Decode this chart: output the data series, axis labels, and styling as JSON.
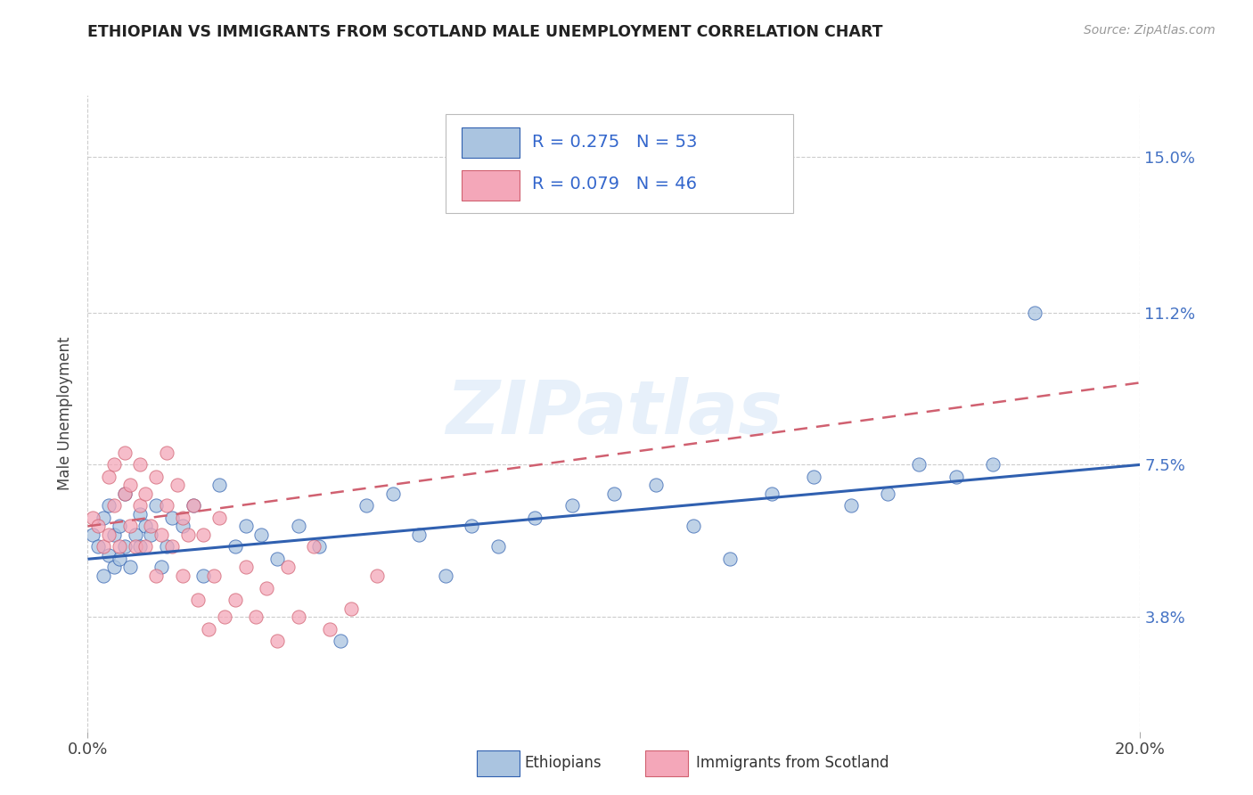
{
  "title": "ETHIOPIAN VS IMMIGRANTS FROM SCOTLAND MALE UNEMPLOYMENT CORRELATION CHART",
  "source": "Source: ZipAtlas.com",
  "ylabel": "Male Unemployment",
  "xlim": [
    0.0,
    0.2
  ],
  "ylim": [
    0.01,
    0.165
  ],
  "yticks": [
    0.038,
    0.075,
    0.112,
    0.15
  ],
  "ytick_labels": [
    "3.8%",
    "7.5%",
    "11.2%",
    "15.0%"
  ],
  "xticks": [
    0.0,
    0.2
  ],
  "xtick_labels": [
    "0.0%",
    "20.0%"
  ],
  "r_ethiopian": 0.275,
  "n_ethiopian": 53,
  "r_scotland": 0.079,
  "n_scotland": 46,
  "color_ethiopian": "#aac4e0",
  "color_scotland": "#f4a7b9",
  "line_color_ethiopian": "#3060b0",
  "line_color_scotland": "#d06070",
  "background_color": "#ffffff",
  "grid_color": "#cccccc",
  "ethiopian_x": [
    0.001,
    0.002,
    0.003,
    0.003,
    0.004,
    0.004,
    0.005,
    0.005,
    0.006,
    0.006,
    0.007,
    0.007,
    0.008,
    0.009,
    0.01,
    0.01,
    0.011,
    0.012,
    0.013,
    0.014,
    0.015,
    0.016,
    0.018,
    0.02,
    0.022,
    0.025,
    0.028,
    0.03,
    0.033,
    0.036,
    0.04,
    0.044,
    0.048,
    0.053,
    0.058,
    0.063,
    0.068,
    0.073,
    0.078,
    0.085,
    0.092,
    0.1,
    0.108,
    0.115,
    0.122,
    0.13,
    0.138,
    0.145,
    0.152,
    0.158,
    0.165,
    0.172,
    0.18
  ],
  "ethiopian_y": [
    0.058,
    0.055,
    0.062,
    0.048,
    0.053,
    0.065,
    0.05,
    0.058,
    0.06,
    0.052,
    0.055,
    0.068,
    0.05,
    0.058,
    0.063,
    0.055,
    0.06,
    0.058,
    0.065,
    0.05,
    0.055,
    0.062,
    0.06,
    0.065,
    0.048,
    0.07,
    0.055,
    0.06,
    0.058,
    0.052,
    0.06,
    0.055,
    0.032,
    0.065,
    0.068,
    0.058,
    0.048,
    0.06,
    0.055,
    0.062,
    0.065,
    0.068,
    0.07,
    0.06,
    0.052,
    0.068,
    0.072,
    0.065,
    0.068,
    0.075,
    0.072,
    0.075,
    0.112
  ],
  "scotland_x": [
    0.001,
    0.002,
    0.003,
    0.004,
    0.004,
    0.005,
    0.005,
    0.006,
    0.007,
    0.007,
    0.008,
    0.008,
    0.009,
    0.01,
    0.01,
    0.011,
    0.011,
    0.012,
    0.013,
    0.013,
    0.014,
    0.015,
    0.015,
    0.016,
    0.017,
    0.018,
    0.018,
    0.019,
    0.02,
    0.021,
    0.022,
    0.023,
    0.024,
    0.025,
    0.026,
    0.028,
    0.03,
    0.032,
    0.034,
    0.036,
    0.038,
    0.04,
    0.043,
    0.046,
    0.05,
    0.055
  ],
  "scotland_y": [
    0.062,
    0.06,
    0.055,
    0.072,
    0.058,
    0.065,
    0.075,
    0.055,
    0.068,
    0.078,
    0.06,
    0.07,
    0.055,
    0.065,
    0.075,
    0.055,
    0.068,
    0.06,
    0.072,
    0.048,
    0.058,
    0.065,
    0.078,
    0.055,
    0.07,
    0.062,
    0.048,
    0.058,
    0.065,
    0.042,
    0.058,
    0.035,
    0.048,
    0.062,
    0.038,
    0.042,
    0.05,
    0.038,
    0.045,
    0.032,
    0.05,
    0.038,
    0.055,
    0.035,
    0.04,
    0.048
  ],
  "legend_r_eth": "R = 0.275",
  "legend_n_eth": "N = 53",
  "legend_r_sco": "R = 0.079",
  "legend_n_sco": "N = 46"
}
